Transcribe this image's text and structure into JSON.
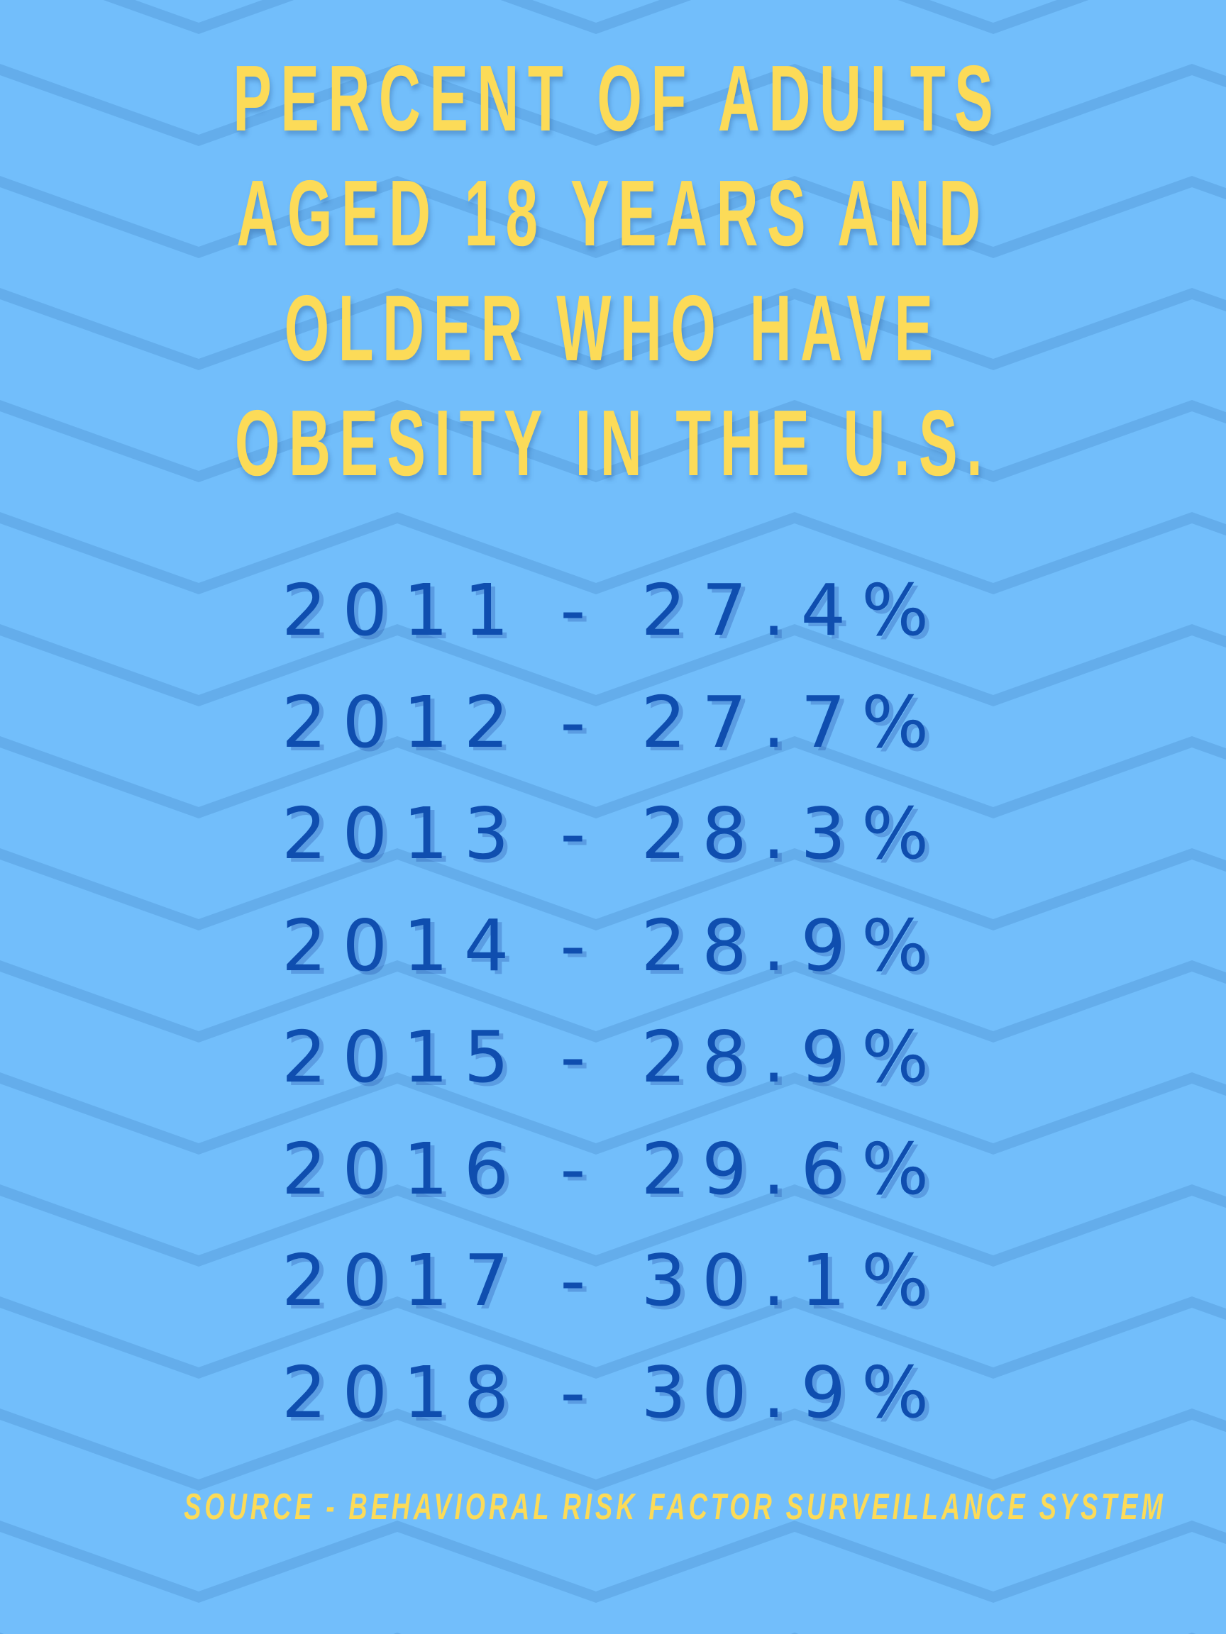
{
  "colors": {
    "background": "#72BEFB",
    "zigzag": "#64ADEB",
    "title": "#FCDB58",
    "stats": "#0F4EAF",
    "source": "#FCDB58"
  },
  "title": {
    "lines": [
      "PERCENT OF ADULTS",
      "AGED 18 YEARS AND",
      "OLDER WHO HAVE",
      "OBESITY IN THE U.S."
    ]
  },
  "stats": [
    {
      "year": "2011",
      "separator": "-",
      "value": "27.4%"
    },
    {
      "year": "2012",
      "separator": "-",
      "value": "27.7%"
    },
    {
      "year": "2013",
      "separator": "-",
      "value": "28.3%"
    },
    {
      "year": "2014",
      "separator": "-",
      "value": "28.9%"
    },
    {
      "year": "2015",
      "separator": "-",
      "value": "28.9%"
    },
    {
      "year": "2016",
      "separator": "-",
      "value": "29.6%"
    },
    {
      "year": "2017",
      "separator": "-",
      "value": "30.1%"
    },
    {
      "year": "2018",
      "separator": "-",
      "value": "30.9%"
    }
  ],
  "source": {
    "text": "SOURCE - BEHAVIORAL RISK FACTOR SURVEILLANCE SYSTEM"
  }
}
